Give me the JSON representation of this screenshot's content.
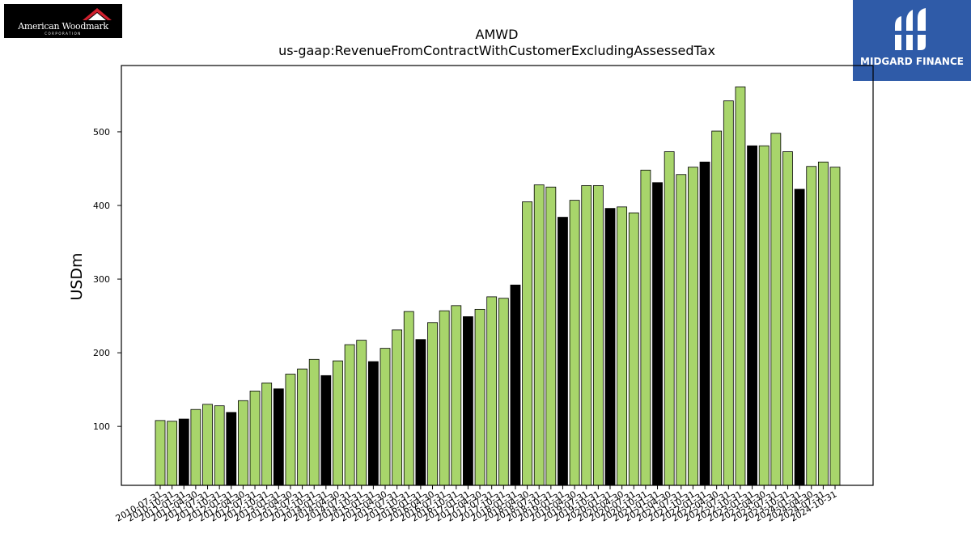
{
  "logos": {
    "left": {
      "line1": "American Woodmark",
      "line2": "CORPORATION"
    },
    "right": {
      "name": "MIDGARD FINANCE"
    }
  },
  "chart_data": {
    "type": "bar",
    "title": "AMWD",
    "subtitle": "us-gaap:RevenueFromContractWithCustomerExcludingAssessedTax",
    "xlabel": "",
    "ylabel": "USDm",
    "ylim": [
      20,
      590
    ],
    "yticks": [
      100,
      200,
      300,
      400,
      500
    ],
    "grid": false,
    "colors": {
      "quarter": "#a8d56b",
      "fiscal_q4": "#000000",
      "edge": "#000000"
    },
    "categories": [
      "2010-07-31",
      "2010-10-31",
      "2011-01-31",
      "2011-04-30",
      "2011-07-31",
      "2011-10-31",
      "2012-01-31",
      "2012-04-30",
      "2012-07-31",
      "2012-10-31",
      "2013-01-31",
      "2013-04-30",
      "2013-07-31",
      "2013-10-31",
      "2014-01-31",
      "2014-04-30",
      "2014-07-31",
      "2014-10-31",
      "2015-01-31",
      "2015-04-30",
      "2015-07-31",
      "2015-10-31",
      "2016-01-31",
      "2016-04-30",
      "2016-07-31",
      "2016-10-31",
      "2017-01-31",
      "2017-04-30",
      "2017-07-31",
      "2017-10-31",
      "2018-01-31",
      "2018-04-30",
      "2018-07-31",
      "2018-10-31",
      "2019-01-31",
      "2019-04-30",
      "2019-07-31",
      "2019-10-31",
      "2020-01-31",
      "2020-04-30",
      "2020-07-31",
      "2020-10-31",
      "2021-01-31",
      "2021-04-30",
      "2021-07-31",
      "2021-10-31",
      "2022-01-31",
      "2022-04-30",
      "2022-07-31",
      "2022-10-31",
      "2023-01-31",
      "2023-04-30",
      "2023-07-31",
      "2023-10-31",
      "2024-01-31",
      "2024-04-30",
      "2024-07-31",
      "2024-10-31"
    ],
    "values": [
      108,
      107,
      110,
      123,
      130,
      128,
      119,
      135,
      148,
      159,
      151,
      171,
      178,
      191,
      169,
      189,
      211,
      217,
      188,
      206,
      231,
      256,
      218,
      241,
      257,
      264,
      249,
      259,
      276,
      274,
      292,
      405,
      428,
      425,
      384,
      407,
      427,
      427,
      396,
      398,
      390,
      448,
      431,
      473,
      442,
      452,
      459,
      501,
      542,
      561,
      481,
      481,
      498,
      473,
      422,
      453,
      459,
      452
    ],
    "highlight": [
      false,
      false,
      true,
      false,
      false,
      false,
      true,
      false,
      false,
      false,
      true,
      false,
      false,
      false,
      true,
      false,
      false,
      false,
      true,
      false,
      false,
      false,
      true,
      false,
      false,
      false,
      true,
      false,
      false,
      false,
      true,
      false,
      false,
      false,
      true,
      false,
      false,
      false,
      true,
      false,
      false,
      false,
      true,
      false,
      false,
      false,
      true,
      false,
      false,
      false,
      true,
      false,
      false,
      false,
      true,
      false,
      false,
      false
    ]
  }
}
